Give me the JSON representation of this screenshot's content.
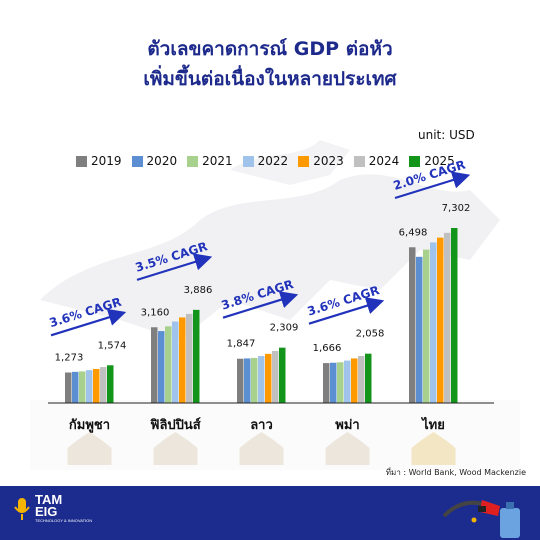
{
  "title": {
    "line1": "ตัวเลขคาดการณ์ GDP ต่อหัว",
    "line2": "เพิ่มขึ้นต่อเนื่องในหลายประเทศ"
  },
  "unit": "unit: USD",
  "source": "ที่มา : World Bank, Wood Mackenzie",
  "logo": {
    "main": "TAM",
    "sub": "EIG",
    "tagline": "TECHNOLOGY & INNOVATION"
  },
  "colors": {
    "title": "#1d2a8c",
    "arrow": "#2233bb",
    "footer": "#1c2b8e"
  },
  "chart_data": {
    "type": "bar",
    "title": "ตัวเลขคาดการณ์ GDP ต่อหัว เพิ่มขึ้นต่อเนื่องในหลายประเทศ",
    "ylabel": "unit: USD",
    "legend_position": "top",
    "grid": false,
    "ylim": [
      0,
      8000
    ],
    "categories": [
      "กัมพูชา",
      "ฟิลิปปินส์",
      "ลาว",
      "พม่า",
      "ไทย"
    ],
    "series": [
      {
        "name": "2019",
        "color": "#7f7f7f",
        "values": [
          1273,
          3160,
          1847,
          1666,
          6498
        ]
      },
      {
        "name": "2020",
        "color": "#5b8fd1",
        "values": [
          1300,
          3000,
          1860,
          1680,
          6100
        ]
      },
      {
        "name": "2021",
        "color": "#a9d18e",
        "values": [
          1320,
          3200,
          1880,
          1700,
          6400
        ]
      },
      {
        "name": "2022",
        "color": "#9fc3ea",
        "values": [
          1370,
          3400,
          1960,
          1770,
          6700
        ]
      },
      {
        "name": "2023",
        "color": "#ff9900",
        "values": [
          1420,
          3570,
          2050,
          1860,
          6900
        ]
      },
      {
        "name": "2024",
        "color": "#c0c0c0",
        "values": [
          1500,
          3720,
          2170,
          1960,
          7100
        ]
      },
      {
        "name": "2025",
        "color": "#13951b",
        "values": [
          1574,
          3886,
          2309,
          2058,
          7302
        ]
      }
    ],
    "data_labels": [
      {
        "start": "1,273",
        "end": "1,574"
      },
      {
        "start": "3,160",
        "end": "3,886"
      },
      {
        "start": "1,847",
        "end": "2,309"
      },
      {
        "start": "1,666",
        "end": "2,058"
      },
      {
        "start": "6,498",
        "end": "7,302"
      }
    ],
    "cagr": [
      "3.6% CAGR",
      "3.5% CAGR",
      "3.8% CAGR",
      "3.6% CAGR",
      "2.0% CAGR"
    ]
  }
}
